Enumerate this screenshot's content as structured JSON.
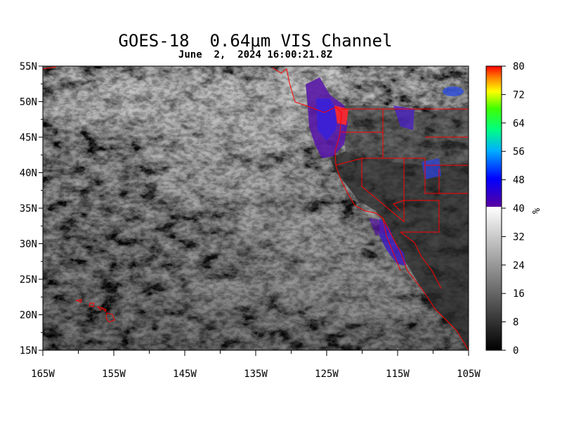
{
  "title": "GOES-18  0.64μm VIS Channel",
  "subtitle": "June  2,  2024 16:00:21.8Z",
  "lat_labels": [
    "55N",
    "50N",
    "45N",
    "40N",
    "35N",
    "30N",
    "25N",
    "20N",
    "15N"
  ],
  "lon_labels": [
    "165W",
    "155W",
    "145W",
    "135W",
    "125W",
    "115W",
    "105W"
  ],
  "colorbar": {
    "unit": "%",
    "ticks": [
      "80",
      "72",
      "64",
      "56",
      "48",
      "40",
      "32",
      "24",
      "16",
      "8",
      "0"
    ],
    "range": [
      0,
      80
    ]
  },
  "map_extent": {
    "lon": [
      -165,
      -105
    ],
    "lat": [
      15,
      55
    ]
  },
  "colors": {
    "border": "#ff0000",
    "high_reflectance": "#5a1aa8"
  }
}
